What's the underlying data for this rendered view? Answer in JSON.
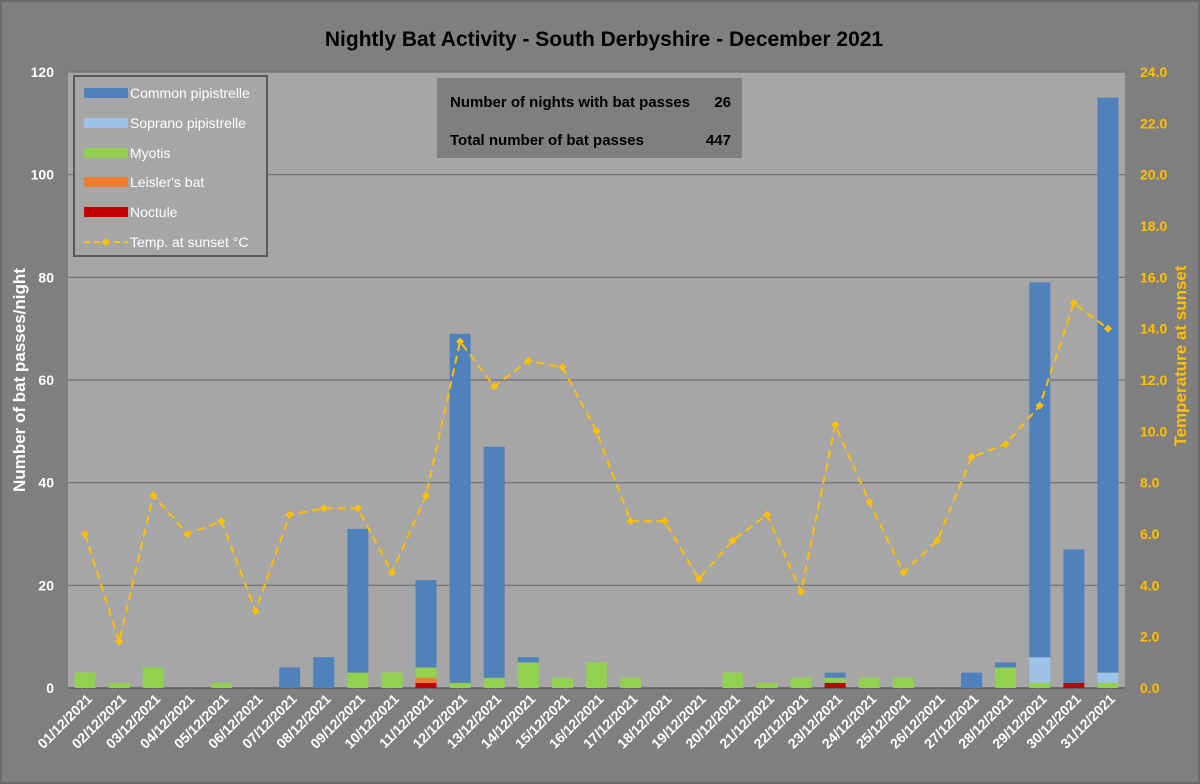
{
  "chart_data": {
    "type": "bar",
    "stacked": true,
    "title": "Nightly Bat Activity - South Derbyshire - December 2021",
    "ylabel": "Number of bat passes/night",
    "y2label": "Temperature at sunset",
    "ylim": [
      0,
      120
    ],
    "y2lim": [
      0,
      24
    ],
    "yticks": [
      "0",
      "20",
      "40",
      "60",
      "80",
      "100",
      "120"
    ],
    "y2ticks": [
      "0.0",
      "2.0",
      "4.0",
      "6.0",
      "8.0",
      "10.0",
      "12.0",
      "14.0",
      "16.0",
      "18.0",
      "20.0",
      "22.0",
      "24.0"
    ],
    "grid": true,
    "legend_position": "top-left",
    "categories": [
      "01/12/2021",
      "02/12/2021",
      "03/12/2021",
      "04/12/2021",
      "05/12/2021",
      "06/12/2021",
      "07/12/2021",
      "08/12/2021",
      "09/12/2021",
      "10/12/2021",
      "11/12/2021",
      "12/12/2021",
      "13/12/2021",
      "14/12/2021",
      "15/12/2021",
      "16/12/2021",
      "17/12/2021",
      "18/12/2021",
      "19/12/2021",
      "20/12/2021",
      "21/12/2021",
      "22/12/2021",
      "23/12/2021",
      "24/12/2021",
      "25/12/2021",
      "26/12/2021",
      "27/12/2021",
      "28/12/2021",
      "29/12/2021",
      "30/12/2021",
      "31/12/2021"
    ],
    "series": [
      {
        "name": "Noctule",
        "color": "#c00000",
        "values": [
          0,
          0,
          0,
          0,
          0,
          0,
          0,
          0,
          0,
          0,
          1,
          0,
          0,
          0,
          0,
          0,
          0,
          0,
          0,
          0,
          0,
          0,
          1,
          0,
          0,
          0,
          0,
          0,
          0,
          1,
          0
        ]
      },
      {
        "name": "Leisler's bat",
        "color": "#ed7d31",
        "values": [
          0,
          0,
          0,
          0,
          0,
          0,
          0,
          0,
          0,
          0,
          1,
          0,
          0,
          0,
          0,
          0,
          0,
          0,
          0,
          0,
          0,
          0,
          0,
          0,
          0,
          0,
          0,
          0,
          0,
          0,
          0
        ]
      },
      {
        "name": "Myotis",
        "color": "#92d050",
        "values": [
          3,
          1,
          4,
          0,
          1,
          0,
          0,
          0,
          3,
          3,
          2,
          1,
          2,
          5,
          2,
          5,
          2,
          0,
          0,
          3,
          1,
          2,
          1,
          2,
          2,
          0,
          0,
          4,
          1,
          0,
          1
        ]
      },
      {
        "name": "Soprano pipistrelle",
        "color": "#9dc3e6",
        "values": [
          0,
          0,
          0,
          0,
          0,
          0,
          0,
          0,
          0,
          0,
          0,
          0,
          0,
          0,
          0,
          0,
          0,
          0,
          0,
          0,
          0,
          0,
          0,
          0,
          0,
          0,
          0,
          0,
          5,
          0,
          2
        ]
      },
      {
        "name": "Common pipistrelle",
        "color": "#4f81bd",
        "values": [
          0,
          0,
          0,
          0,
          0,
          0,
          4,
          6,
          28,
          0,
          17,
          68,
          45,
          1,
          0,
          0,
          0,
          0,
          0,
          0,
          0,
          0,
          1,
          0,
          0,
          0,
          3,
          1,
          73,
          26,
          112
        ]
      }
    ],
    "line": {
      "name": "Temp. at sunset °C",
      "color": "#ffc000",
      "axis": "right",
      "values": [
        6.0,
        1.8,
        7.5,
        6.0,
        6.5,
        3.0,
        6.75,
        7.0,
        7.0,
        4.5,
        7.5,
        13.5,
        11.75,
        12.75,
        12.5,
        10.0,
        6.5,
        6.5,
        4.25,
        5.75,
        6.75,
        3.75,
        10.25,
        7.25,
        4.5,
        5.75,
        9.0,
        9.5,
        11.0,
        15.0,
        14.0
      ]
    }
  },
  "legend": {
    "items": [
      {
        "label": "Common pipistrelle",
        "color": "#4f81bd",
        "kind": "swatch"
      },
      {
        "label": "Soprano pipistrelle",
        "color": "#9dc3e6",
        "kind": "swatch"
      },
      {
        "label": "Myotis",
        "color": "#92d050",
        "kind": "swatch"
      },
      {
        "label": "Leisler's bat",
        "color": "#ed7d31",
        "kind": "swatch"
      },
      {
        "label": "Noctule",
        "color": "#c00000",
        "kind": "swatch"
      },
      {
        "label": "Temp. at sunset °C",
        "color": "#ffc000",
        "kind": "line"
      }
    ]
  },
  "info_box": {
    "nights_label": "Number of nights with bat passes",
    "nights_value": "26",
    "total_label": "Total number of bat passes",
    "total_value": "447"
  }
}
